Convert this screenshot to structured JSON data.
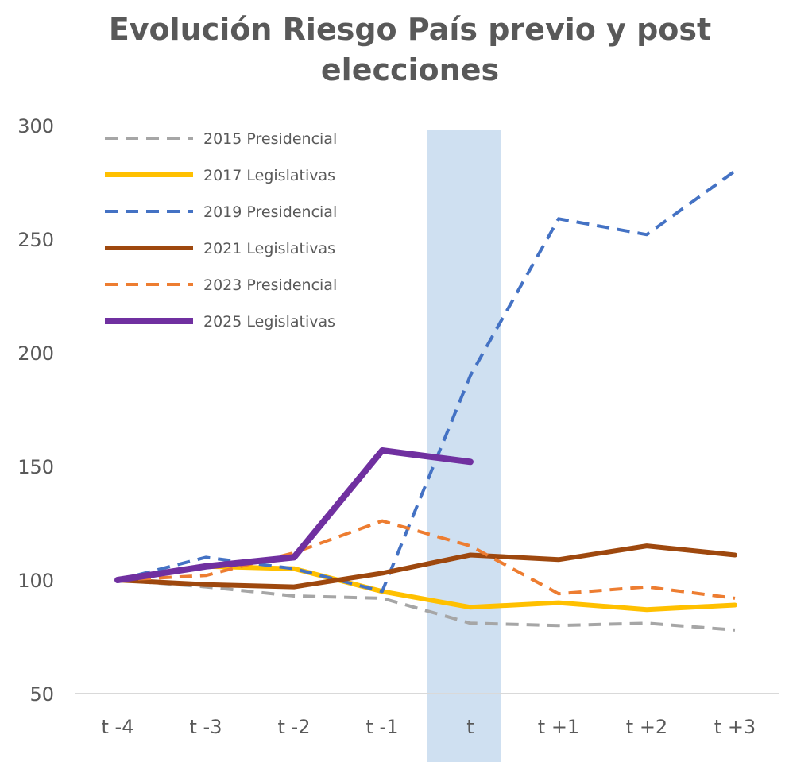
{
  "chart_data": {
    "type": "line",
    "title_line1": "Evolución Riesgo País previo y post",
    "title_line2": "elecciones",
    "xlabel": "",
    "ylabel": "",
    "categories": [
      "t -4",
      "t -3",
      "t -2",
      "t -1",
      "t",
      "t +1",
      "t +2",
      "t +3"
    ],
    "ylim": [
      50,
      300
    ],
    "yticks": [
      "50",
      "100",
      "150",
      "200",
      "250",
      "300"
    ],
    "highlight_category": "t",
    "highlight_color": "#cfe0f1",
    "legend_position": "top-left",
    "series": [
      {
        "name": "2015 Presidencial",
        "color": "#a6a6a6",
        "dashed": true,
        "width": 4,
        "values": [
          100,
          97,
          93,
          92,
          81,
          80,
          81,
          78
        ]
      },
      {
        "name": "2017 Legislativas",
        "color": "#ffc000",
        "dashed": false,
        "width": 6,
        "values": [
          100,
          106,
          105,
          95,
          88,
          90,
          87,
          89
        ]
      },
      {
        "name": "2019 Presidencial",
        "color": "#4472c4",
        "dashed": true,
        "width": 4,
        "values": [
          100,
          110,
          105,
          95,
          190,
          259,
          252,
          280
        ]
      },
      {
        "name": "2021 Legislativas",
        "color": "#9e480e",
        "dashed": false,
        "width": 6,
        "values": [
          100,
          98,
          97,
          103,
          111,
          109,
          115,
          111
        ]
      },
      {
        "name": "2023 Presidencial",
        "color": "#ed7d31",
        "dashed": true,
        "width": 4,
        "values": [
          100,
          102,
          112,
          126,
          115,
          94,
          97,
          92
        ]
      },
      {
        "name": "2025 Legislativas",
        "color": "#7030a0",
        "dashed": false,
        "width": 8,
        "values": [
          100,
          106,
          110,
          157,
          152,
          null,
          null,
          null
        ]
      }
    ]
  }
}
